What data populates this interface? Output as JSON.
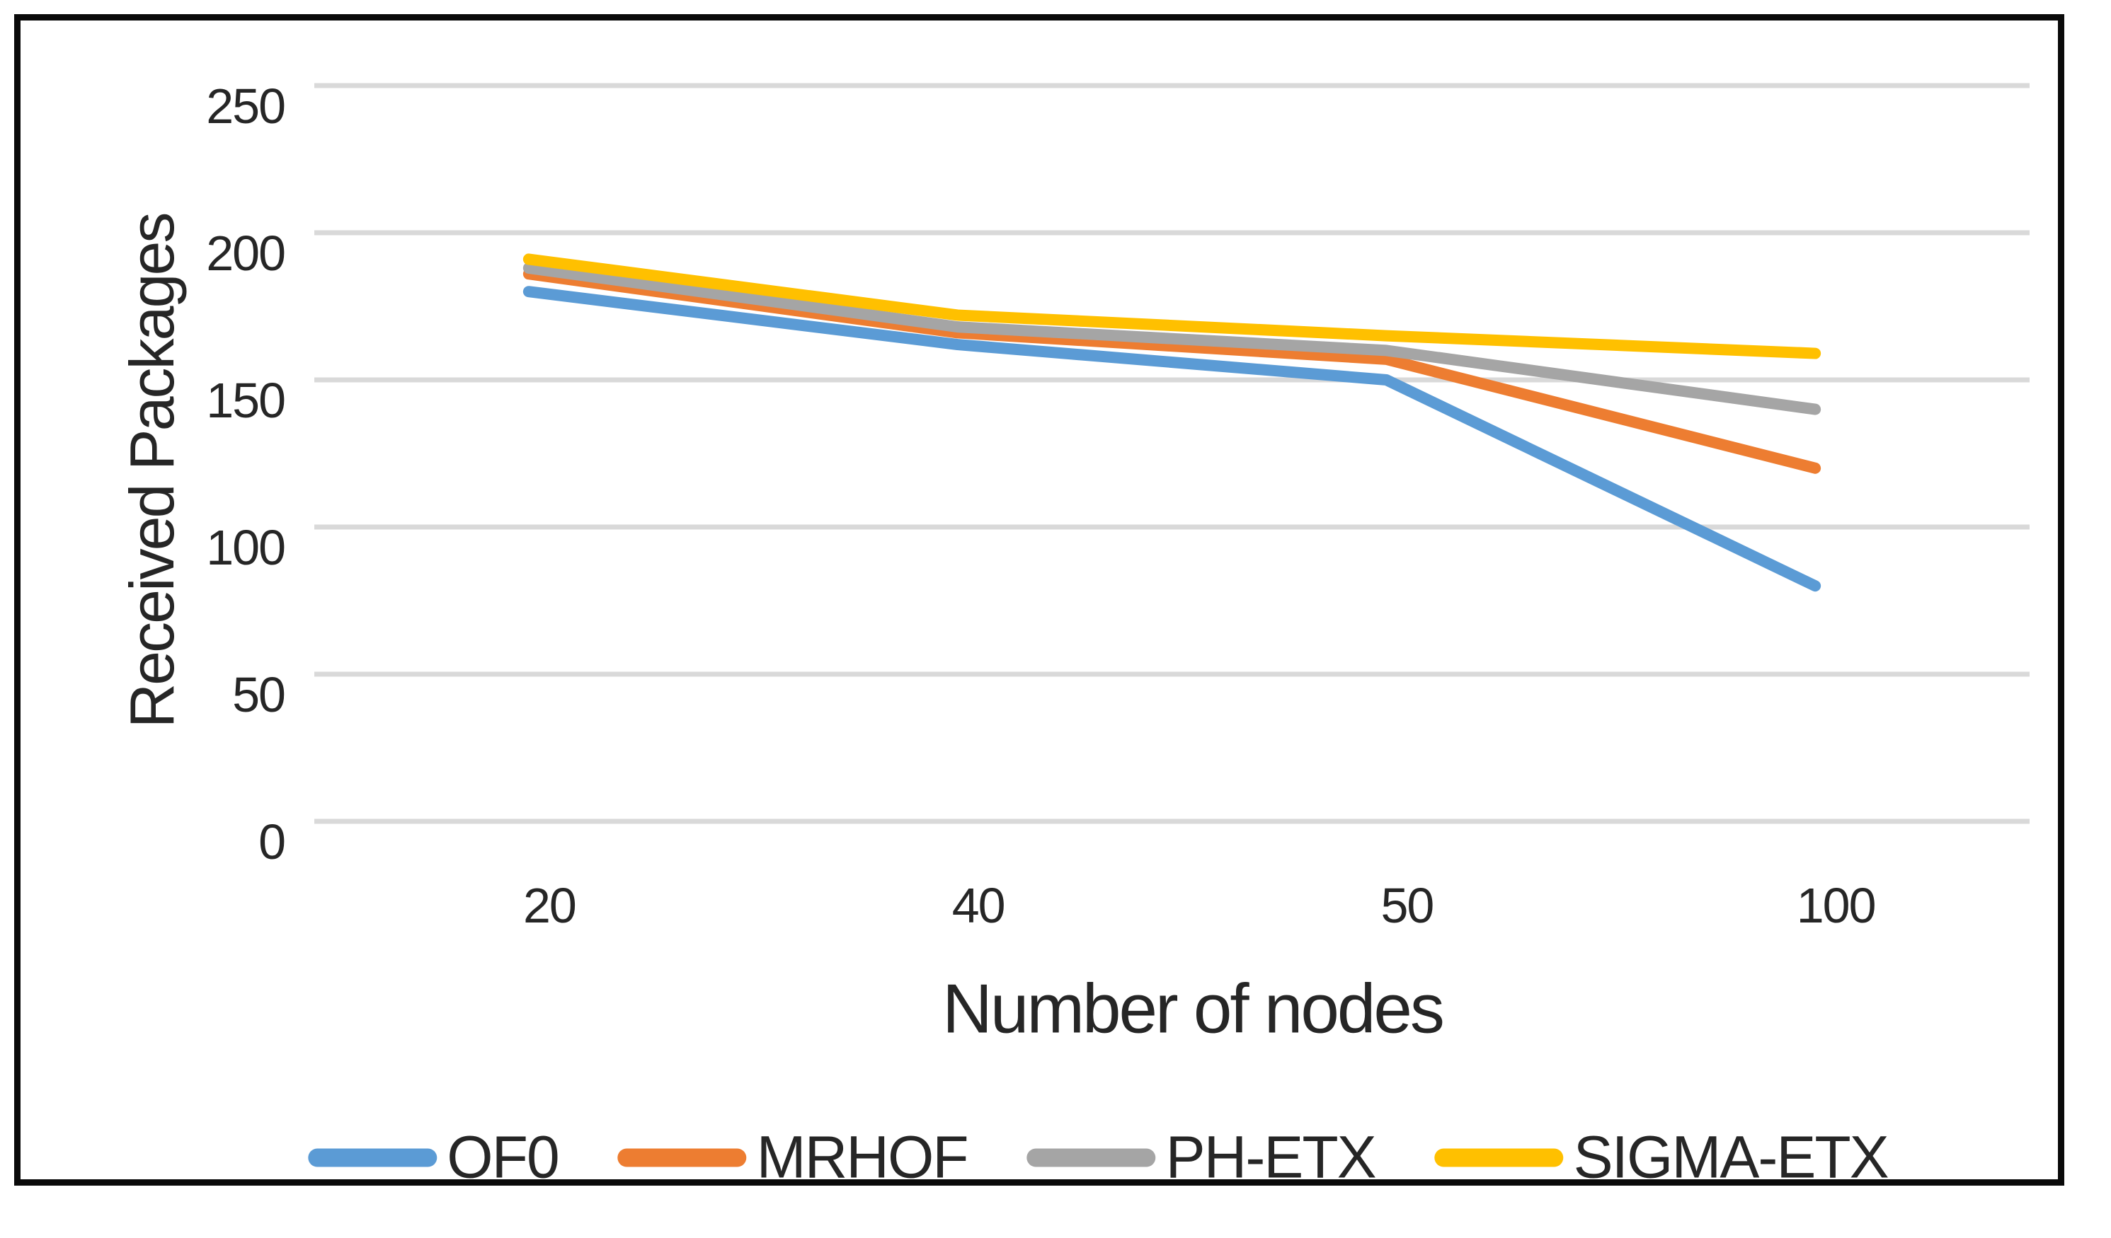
{
  "chart_data": {
    "type": "line",
    "title": "",
    "categories": [
      "20",
      "40",
      "50",
      "100"
    ],
    "xlabel": "Number of nodes",
    "ylabel": "Received Packages",
    "ylim": [
      0,
      250
    ],
    "yticks": [
      0,
      50,
      100,
      150,
      200,
      250
    ],
    "grid": true,
    "legend_position": "bottom",
    "gridline_color": "#D9D9D9",
    "text_color": "#262626",
    "frame_border_color": "#0a0a0a",
    "series": [
      {
        "name": "OF0",
        "color": "#5B9BD5",
        "values": [
          180,
          162,
          150,
          80
        ]
      },
      {
        "name": "MRHOF",
        "color": "#ED7D31",
        "values": [
          186,
          166,
          157,
          120
        ]
      },
      {
        "name": "PH-ETX",
        "color": "#A5A5A5",
        "values": [
          188,
          168,
          160,
          140
        ]
      },
      {
        "name": "SIGMA-ETX",
        "color": "#FFC000",
        "values": [
          191,
          172,
          165,
          159
        ]
      }
    ]
  }
}
